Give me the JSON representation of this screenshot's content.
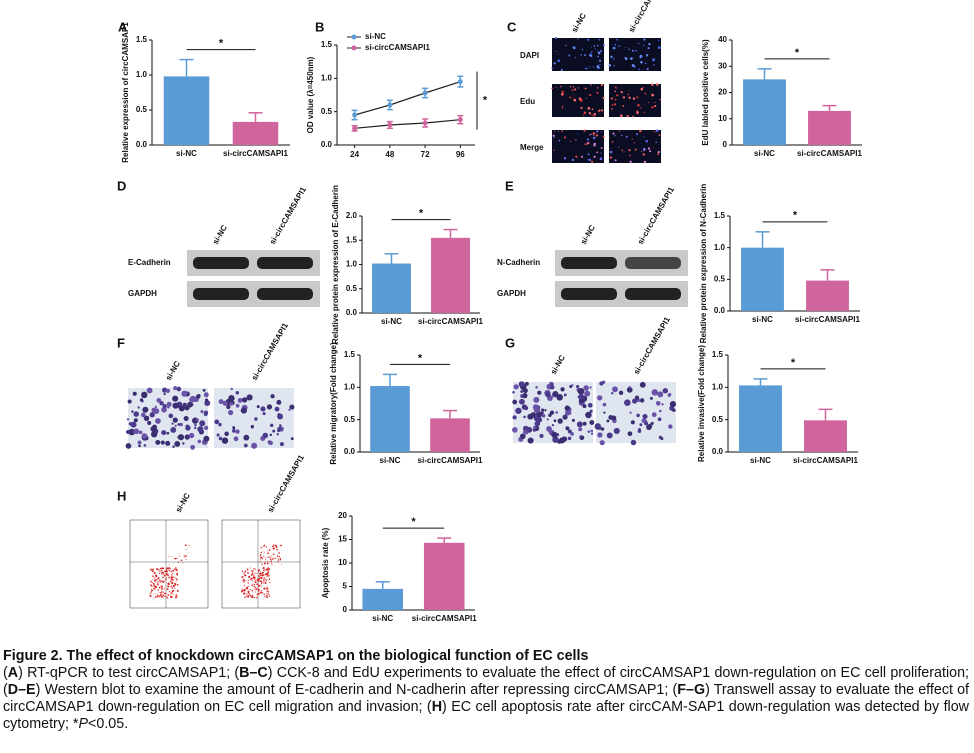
{
  "chart_data": [
    {
      "label": "A",
      "type": "bar",
      "y_label": "Relative expression of circCAMSAP1",
      "categories": [
        "si-NC",
        "si-circCAMSAPI1"
      ],
      "values": [
        0.98,
        0.33
      ],
      "errors": [
        0.24,
        0.13
      ],
      "colors": [
        "#5b9bd5",
        "#d0649d"
      ],
      "ylim": [
        0,
        1.5
      ],
      "yticks": [
        {
          "value": 0,
          "label": "0.0"
        },
        {
          "value": 0.5,
          "label": "0.5"
        },
        {
          "value": 1,
          "label": "1.0"
        },
        {
          "value": 1.5,
          "label": "1.5"
        }
      ],
      "significance": "*"
    },
    {
      "label": "B",
      "type": "line",
      "y_label": "OD value (λ=450nm)",
      "x": [
        24,
        48,
        72,
        96
      ],
      "xlim": [
        12,
        106
      ],
      "xticks": [
        24,
        48,
        72,
        96
      ],
      "ylim": [
        0,
        1.5
      ],
      "yticks": [
        {
          "value": 0,
          "label": "0.0"
        },
        {
          "value": 0.5,
          "label": "0.5"
        },
        {
          "value": 1,
          "label": "1.0"
        },
        {
          "value": 1.5,
          "label": "1.5"
        }
      ],
      "line_color": "#222222",
      "series": [
        {
          "name": "si-NC",
          "color": "#5b9bd5",
          "values": [
            0.45,
            0.6,
            0.78,
            0.95
          ],
          "errors": [
            0.07,
            0.07,
            0.07,
            0.08
          ]
        },
        {
          "name": "si-circCAMSAPI1",
          "color": "#d0649d",
          "values": [
            0.25,
            0.3,
            0.33,
            0.38
          ],
          "errors": [
            0.04,
            0.05,
            0.06,
            0.06
          ]
        }
      ],
      "significance": "*"
    },
    {
      "label": "C",
      "type": "bar",
      "y_label": "EdU labled positive cells(%)",
      "categories": [
        "si-NC",
        "si-circCAMSAPI1"
      ],
      "values": [
        25,
        13
      ],
      "errors": [
        4,
        2
      ],
      "colors": [
        "#5b9bd5",
        "#d0649d"
      ],
      "ylim": [
        0,
        40
      ],
      "yticks": [
        0,
        10,
        20,
        30,
        40
      ],
      "significance": "*"
    },
    {
      "label": "D",
      "type": "bar",
      "y_label": "Relative protein expression of E-Cadherin",
      "categories": [
        "si-NC",
        "si-circCAMSAPI1"
      ],
      "values": [
        1.02,
        1.55
      ],
      "errors": [
        0.2,
        0.17
      ],
      "colors": [
        "#5b9bd5",
        "#d0649d"
      ],
      "ylim": [
        0,
        2
      ],
      "yticks": [
        {
          "value": 0,
          "label": "0.0"
        },
        {
          "value": 0.5,
          "label": "0.5"
        },
        {
          "value": 1,
          "label": "1.0"
        },
        {
          "value": 1.5,
          "label": "1.5"
        },
        {
          "value": 2,
          "label": "2.0"
        }
      ],
      "significance": "*"
    },
    {
      "label": "E",
      "type": "bar",
      "y_label": "Relative protein expression of N-Cadherin",
      "categories": [
        "si-NC",
        "si-circCAMSAPI1"
      ],
      "values": [
        1.0,
        0.48
      ],
      "errors": [
        0.25,
        0.17
      ],
      "colors": [
        "#5b9bd5",
        "#d0649d"
      ],
      "ylim": [
        0,
        1.5
      ],
      "yticks": [
        {
          "value": 0,
          "label": "0.0"
        },
        {
          "value": 0.5,
          "label": "0.5"
        },
        {
          "value": 1,
          "label": "1.0"
        },
        {
          "value": 1.5,
          "label": "1.5"
        }
      ],
      "significance": "*"
    },
    {
      "label": "F",
      "type": "bar",
      "y_label": "Relative migratory(Fold change)",
      "categories": [
        "si-NC",
        "si-circCAMSAPI1"
      ],
      "values": [
        1.02,
        0.52
      ],
      "errors": [
        0.18,
        0.12
      ],
      "colors": [
        "#5b9bd5",
        "#d0649d"
      ],
      "ylim": [
        0,
        1.5
      ],
      "yticks": [
        {
          "value": 0,
          "label": "0.0"
        },
        {
          "value": 0.5,
          "label": "0.5"
        },
        {
          "value": 1,
          "label": "1.0"
        },
        {
          "value": 1.5,
          "label": "1.5"
        }
      ],
      "significance": "*"
    },
    {
      "label": "G",
      "type": "bar",
      "y_label": "Relative invasive(Fold change)",
      "categories": [
        "si-NC",
        "si-circCAMSAPI1"
      ],
      "values": [
        1.03,
        0.49
      ],
      "errors": [
        0.1,
        0.17
      ],
      "colors": [
        "#5b9bd5",
        "#d0649d"
      ],
      "ylim": [
        0,
        1.5
      ],
      "yticks": [
        {
          "value": 0,
          "label": "0.0"
        },
        {
          "value": 0.5,
          "label": "0.5"
        },
        {
          "value": 1,
          "label": "1.0"
        },
        {
          "value": 1.5,
          "label": "1.5"
        }
      ],
      "significance": "*"
    },
    {
      "label": "H",
      "type": "bar",
      "y_label": "Apoptosis rate (%)",
      "categories": [
        "si-NC",
        "si-circCAMSAPI1"
      ],
      "values": [
        4.5,
        14.3
      ],
      "errors": [
        1.5,
        1.0
      ],
      "colors": [
        "#5b9bd5",
        "#d0649d"
      ],
      "ylim": [
        0,
        20
      ],
      "yticks": [
        0,
        5,
        10,
        15,
        20
      ],
      "significance": "*"
    }
  ],
  "images": {
    "C": {
      "columns": [
        "si-NC",
        "si-circCAMSAPI1"
      ],
      "rows": [
        "DAPI",
        "Edu",
        "Merge"
      ]
    },
    "D": {
      "columns": [
        "si-NC",
        "si-circCAMSAPI1"
      ],
      "rows": [
        "E-Cadherin",
        "GAPDH"
      ]
    },
    "E": {
      "columns": [
        "si-NC",
        "si-circCAMSAPI1"
      ],
      "rows": [
        "N-Cadherin",
        "GAPDH"
      ]
    },
    "F": {
      "columns": [
        "si-NC",
        "si-circCAMSAPI1"
      ]
    },
    "G": {
      "columns": [
        "si-NC",
        "si-circCAMSAPI1"
      ]
    },
    "H": {
      "columns": [
        "si-NC",
        "si-circCAMSAPI1"
      ]
    }
  },
  "caption": {
    "title": "Figure 2. The effect of knockdown circCAMSAP1 on the biological function of EC cells",
    "segments": [
      {
        "text": "(",
        "style": "normal"
      },
      {
        "text": "A",
        "style": "bold"
      },
      {
        "text": ") RT-qPCR to test circCAMSAP1; (",
        "style": "normal"
      },
      {
        "text": "B–C",
        "style": "bold"
      },
      {
        "text": ") CCK-8 and EdU experiments to evaluate the effect of circCAMSAP1 down-regulation on EC cell proliferation; (",
        "style": "normal"
      },
      {
        "text": "D–E",
        "style": "bold"
      },
      {
        "text": ") Western blot to examine the amount of E-cadherin and N-cadherin after repressing circCAMSAP1; (",
        "style": "normal"
      },
      {
        "text": "F–G",
        "style": "bold"
      },
      {
        "text": ") Transwell assay to evaluate the effect of circCAMSAP1 down-regulation on EC cell migration and invasion; (",
        "style": "normal"
      },
      {
        "text": "H",
        "style": "bold"
      },
      {
        "text": ") EC cell apoptosis rate after circCAM-SAP1 down-regulation was detected by flow cytometry; *",
        "style": "normal"
      },
      {
        "text": "P",
        "style": "italic"
      },
      {
        "text": "<0.05.",
        "style": "normal"
      }
    ]
  }
}
